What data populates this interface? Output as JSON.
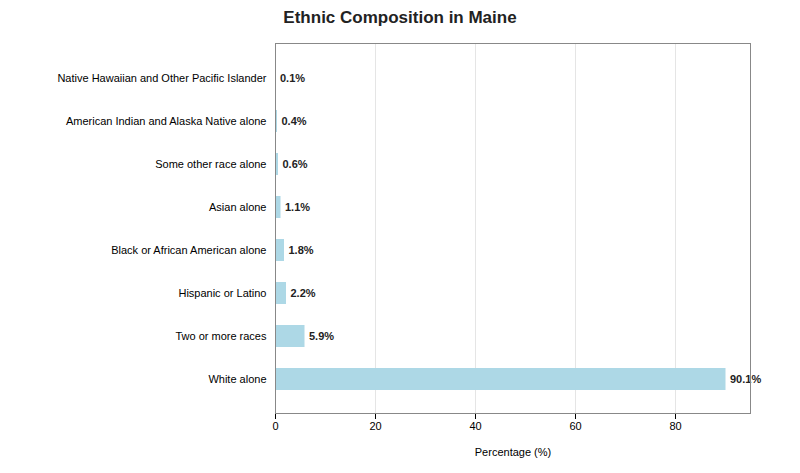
{
  "chart_data": {
    "type": "bar",
    "orientation": "horizontal",
    "title": "Ethnic Composition in Maine",
    "categories": [
      "White alone",
      "Two or more races",
      "Hispanic or Latino",
      "Black or African American alone",
      "Asian alone",
      "Some other race alone",
      "American Indian and Alaska Native alone",
      "Native Hawaiian and Other Pacific Islander"
    ],
    "values": [
      90.1,
      5.9,
      2.2,
      1.8,
      1.1,
      0.6,
      0.4,
      0.1
    ],
    "value_labels": [
      "90.1%",
      "5.9%",
      "2.2%",
      "1.8%",
      "1.1%",
      "0.6%",
      "0.4%",
      "0.1%"
    ],
    "data_labels": true,
    "color": "#add8e6",
    "xlabel": "Percentage (%)",
    "xlim": [
      0,
      95
    ],
    "xticks": [
      0,
      20,
      40,
      60,
      80
    ],
    "grid": true
  }
}
